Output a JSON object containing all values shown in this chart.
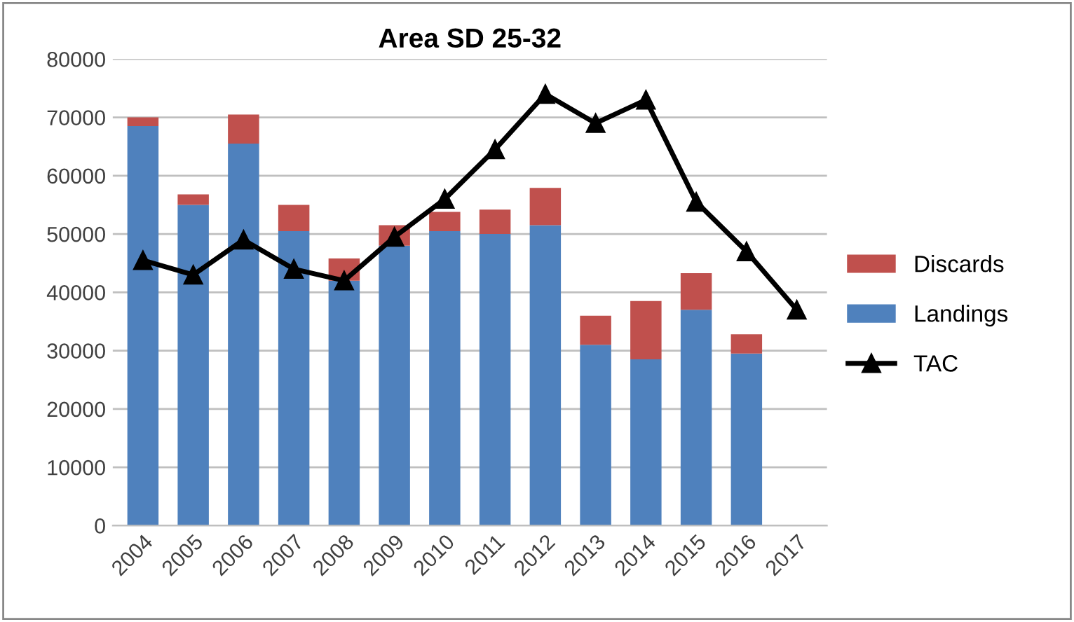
{
  "chart_data": {
    "type": "bar",
    "title": "Area SD 25-32",
    "stacked": true,
    "categories": [
      "2004",
      "2005",
      "2006",
      "2007",
      "2008",
      "2009",
      "2010",
      "2011",
      "2012",
      "2013",
      "2014",
      "2015",
      "2016",
      "2017"
    ],
    "series": [
      {
        "name": "Landings",
        "color": "#4f81bd",
        "values": [
          68500,
          55000,
          65500,
          50500,
          42000,
          48000,
          50500,
          50000,
          51500,
          31000,
          28500,
          37000,
          29500,
          null
        ]
      },
      {
        "name": "Discards",
        "color": "#c0504d",
        "values": [
          1500,
          1800,
          5000,
          4500,
          3800,
          3500,
          3300,
          4200,
          6400,
          5000,
          10000,
          6300,
          3300,
          null
        ]
      },
      {
        "name": "TAC",
        "type": "line",
        "color": "#000000",
        "marker": "triangle",
        "values": [
          45500,
          43000,
          49000,
          44000,
          42000,
          49500,
          56000,
          64500,
          74000,
          69000,
          73000,
          55500,
          47000,
          37000
        ]
      }
    ],
    "ylim": [
      0,
      80000
    ],
    "yticks": [
      0,
      10000,
      20000,
      30000,
      40000,
      50000,
      60000,
      70000,
      80000
    ],
    "grid": "y",
    "legend": "right"
  }
}
